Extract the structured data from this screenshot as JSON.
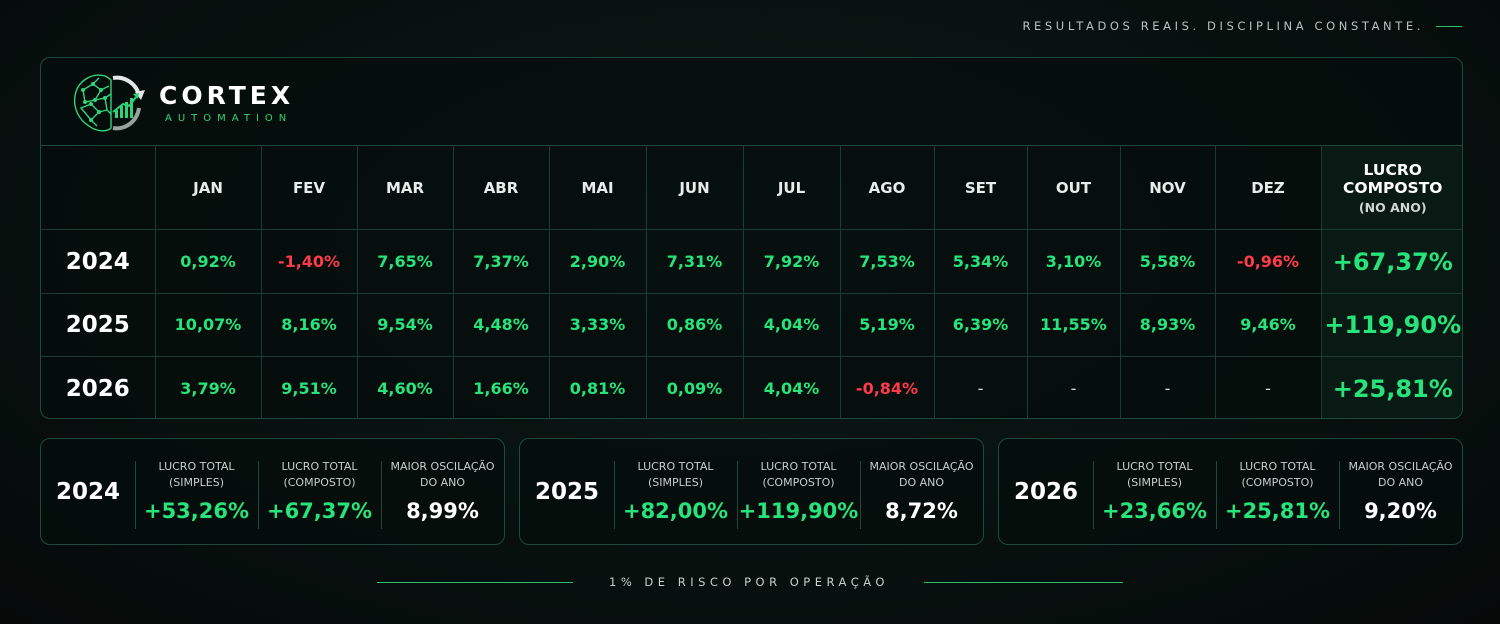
{
  "tagline": "RESULTADOS REAIS. DISCIPLINA CONSTANTE.",
  "brand": {
    "name": "CORTEX",
    "subtitle": "AUTOMATION",
    "accent": "#27e37a",
    "negative": "#ff3b4a",
    "icon": "brain-chart-logo-icon"
  },
  "table": {
    "months": [
      "JAN",
      "FEV",
      "MAR",
      "ABR",
      "MAI",
      "JUN",
      "JUL",
      "AGO",
      "SET",
      "OUT",
      "NOV",
      "DEZ"
    ],
    "total_header": {
      "line1": "LUCRO",
      "line2": "COMPOSTO",
      "line3": "(NO ANO)"
    },
    "rows": [
      {
        "year": "2024",
        "values": [
          "0,92%",
          "-1,40%",
          "7,65%",
          "7,37%",
          "2,90%",
          "7,31%",
          "7,92%",
          "7,53%",
          "5,34%",
          "3,10%",
          "5,58%",
          "-0,96%"
        ],
        "total": "+67,37%"
      },
      {
        "year": "2025",
        "values": [
          "10,07%",
          "8,16%",
          "9,54%",
          "4,48%",
          "3,33%",
          "0,86%",
          "4,04%",
          "5,19%",
          "6,39%",
          "11,55%",
          "8,93%",
          "9,46%"
        ],
        "total": "+119,90%"
      },
      {
        "year": "2026",
        "values": [
          "3,79%",
          "9,51%",
          "4,60%",
          "1,66%",
          "0,81%",
          "0,09%",
          "4,04%",
          "-0,84%",
          "-",
          "-",
          "-",
          "-"
        ],
        "total": "+25,81%"
      }
    ]
  },
  "summary_labels": {
    "simple": {
      "line1": "LUCRO TOTAL",
      "line2": "(SIMPLES)"
    },
    "compound": {
      "line1": "LUCRO TOTAL",
      "line2": "(COMPOSTO)"
    },
    "swing": {
      "line1": "MAIOR OSCILAÇÃO",
      "line2": "DO ANO"
    }
  },
  "summaries": [
    {
      "year": "2024",
      "simple": "+53,26%",
      "compound": "+67,37%",
      "swing": "8,99%"
    },
    {
      "year": "2025",
      "simple": "+82,00%",
      "compound": "+119,90%",
      "swing": "8,72%"
    },
    {
      "year": "2026",
      "simple": "+23,66%",
      "compound": "+25,81%",
      "swing": "9,20%"
    }
  ],
  "footer": "1% DE RISCO POR OPERAÇÃO"
}
